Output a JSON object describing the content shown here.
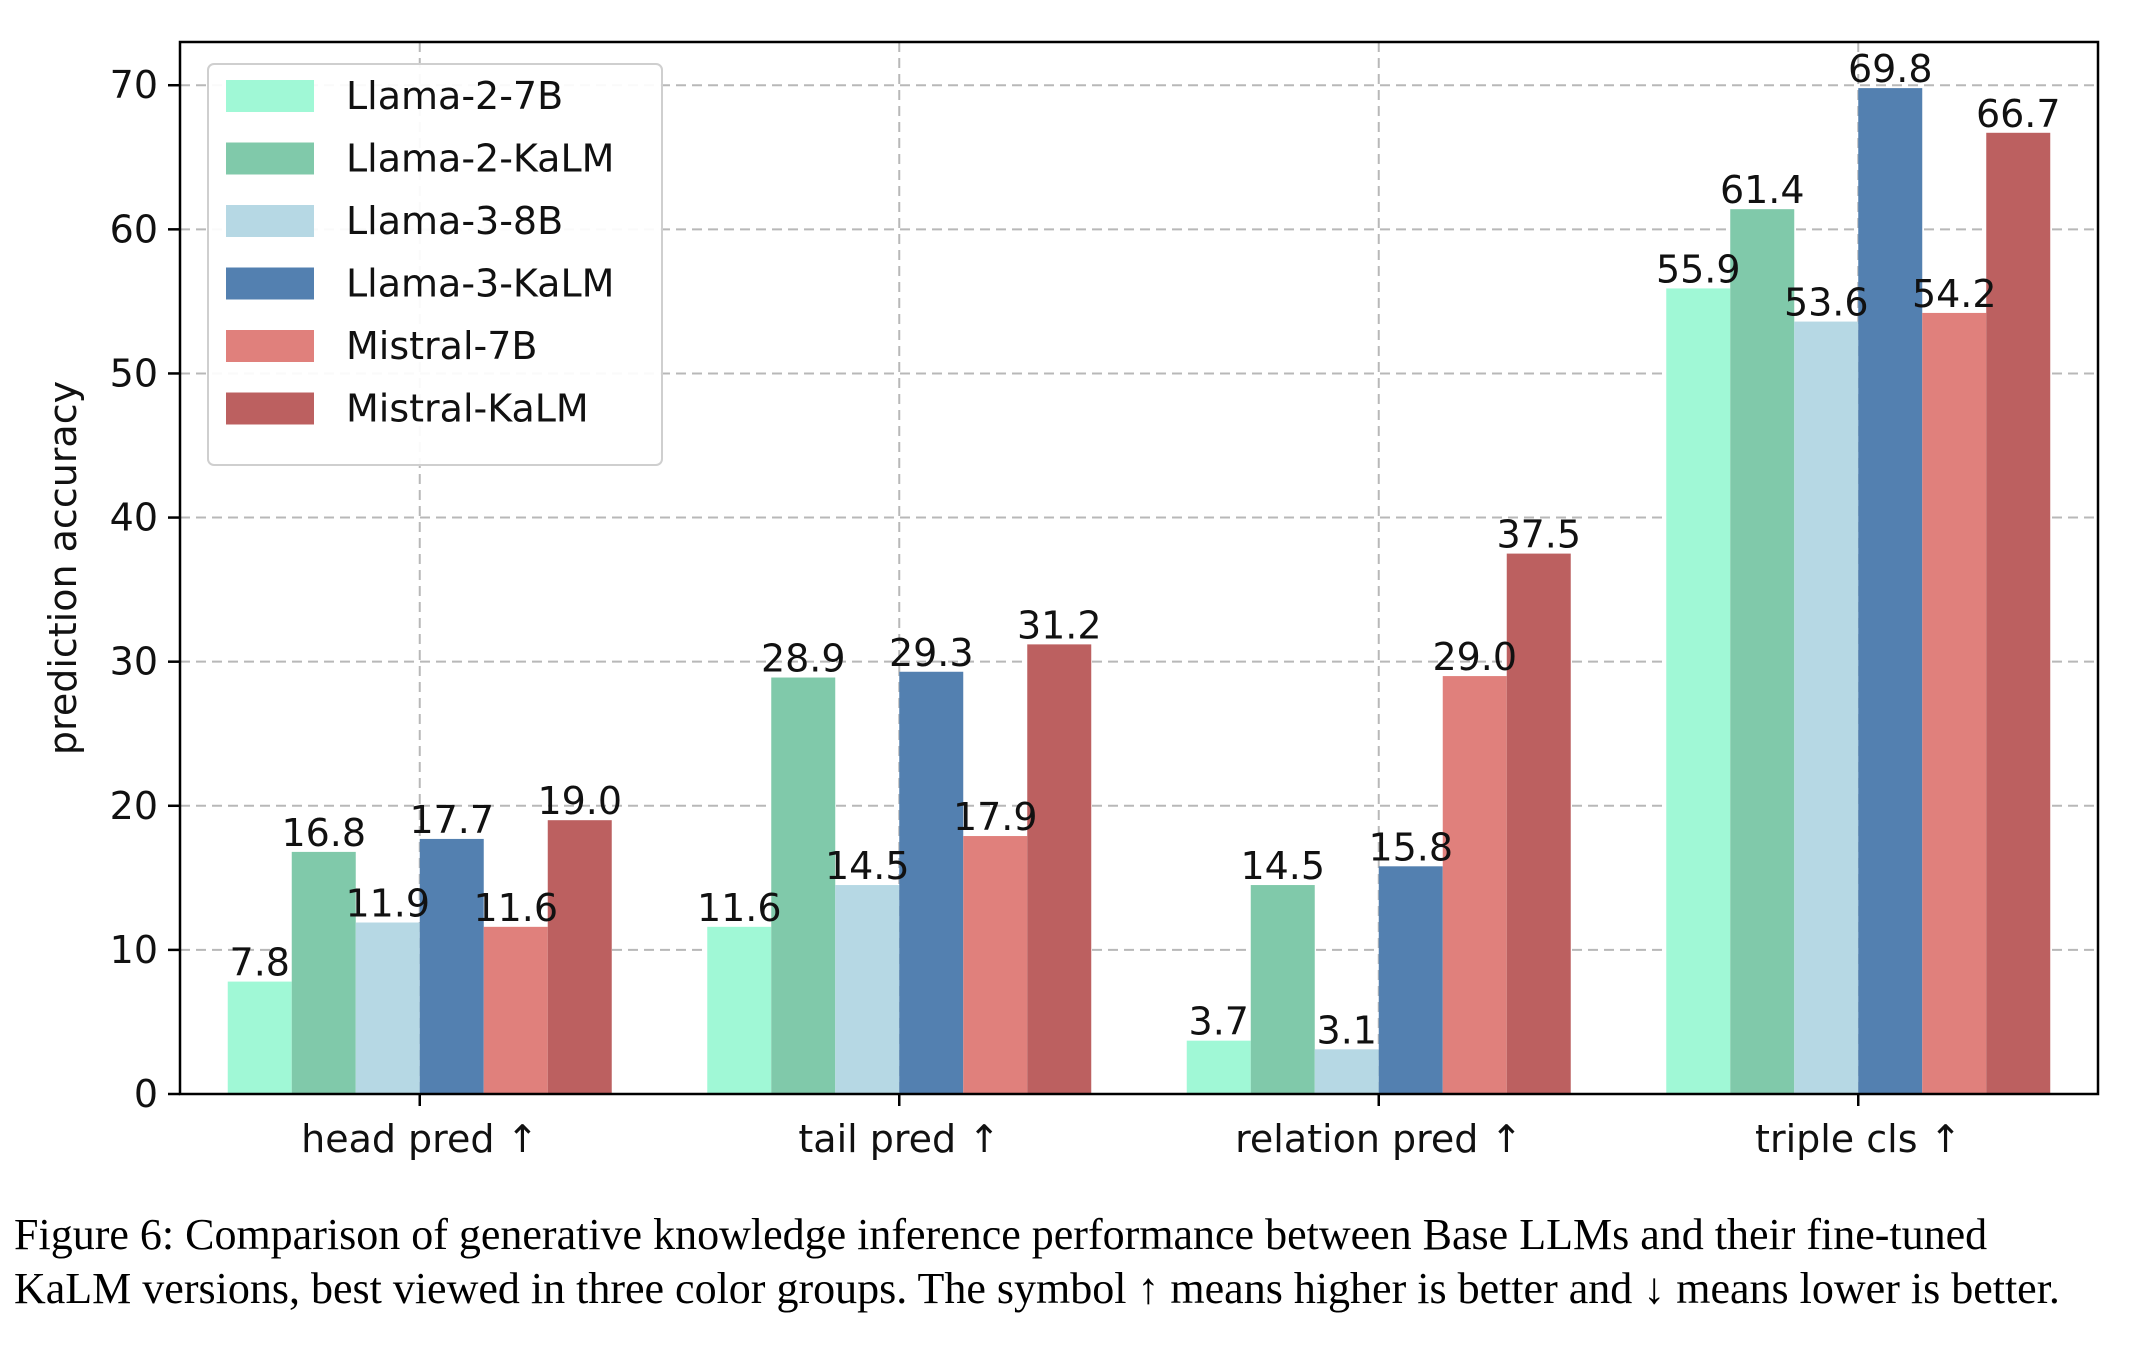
{
  "chart_data": {
    "type": "bar",
    "title": "",
    "xlabel": "",
    "ylabel": "prediction accuracy",
    "ylim": [
      0,
      73
    ],
    "yticks": [
      0,
      10,
      20,
      30,
      40,
      50,
      60,
      70
    ],
    "grid": true,
    "legend_position": "top-left",
    "categories": [
      "head pred ↑",
      "tail pred ↑",
      "relation pred ↑",
      "triple cls ↑"
    ],
    "series": [
      {
        "name": "Llama-2-7B",
        "color": "#a0f8d6",
        "values": [
          7.8,
          11.6,
          3.7,
          55.9
        ]
      },
      {
        "name": "Llama-2-KaLM",
        "color": "#80c9aa",
        "values": [
          16.8,
          28.9,
          14.5,
          61.4
        ]
      },
      {
        "name": "Llama-3-8B",
        "color": "#b6d8e4",
        "values": [
          11.9,
          14.5,
          3.1,
          53.6
        ]
      },
      {
        "name": "Llama-3-KaLM",
        "color": "#5380b0",
        "values": [
          17.7,
          29.3,
          15.8,
          69.8
        ]
      },
      {
        "name": "Mistral-7B",
        "color": "#e0807c",
        "values": [
          11.6,
          17.9,
          29.0,
          54.2
        ]
      },
      {
        "name": "Mistral-KaLM",
        "color": "#bc6060",
        "values": [
          19.0,
          31.2,
          37.5,
          66.7
        ]
      }
    ]
  },
  "caption": {
    "line1": "Figure 6: Comparison of generative knowledge inference performance between Base LLMs and their fine-tuned",
    "line2": "KaLM versions, best viewed in three color groups. The symbol ↑ means higher is better and ↓ means lower is better."
  }
}
